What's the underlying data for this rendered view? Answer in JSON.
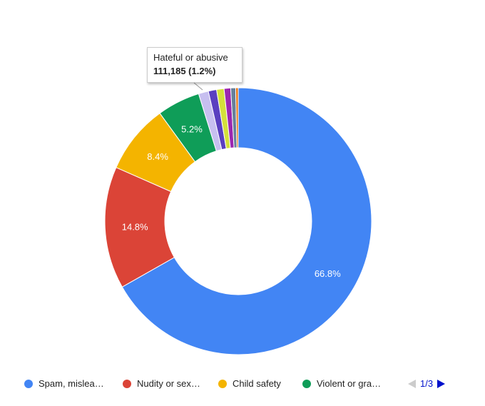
{
  "chart_data": {
    "type": "pie",
    "donut": true,
    "slices": [
      {
        "label": "Spam, misleading and scams",
        "percent": 66.8,
        "color": "#4285f4",
        "shown_label": "66.8%"
      },
      {
        "label": "Nudity or sexual content",
        "percent": 14.8,
        "color": "#db4437",
        "shown_label": "14.8%"
      },
      {
        "label": "Child safety",
        "percent": 8.4,
        "color": "#f4b400",
        "shown_label": "8.4%"
      },
      {
        "label": "Violent or graphic content",
        "percent": 5.2,
        "color": "#0f9d58",
        "shown_label": "5.2%"
      },
      {
        "label": "Hateful or abusive",
        "percent": 1.2,
        "color": "#c7bff0"
      },
      {
        "label": "",
        "percent": 1.0,
        "color": "#5a3fc0"
      },
      {
        "label": "",
        "percent": 0.9,
        "color": "#d4e03a"
      },
      {
        "label": "",
        "percent": 0.8,
        "color": "#9c27b0"
      },
      {
        "label": "",
        "percent": 0.6,
        "color": "#66809a"
      },
      {
        "label": "",
        "percent": 0.3,
        "color": "#e8710a"
      }
    ],
    "tooltip": {
      "title": "Hateful or abusive",
      "value": "111,185 (1.2%)"
    },
    "legend": {
      "placement": "bottom",
      "items": [
        {
          "label": "Spam, mislea…",
          "color": "#4285f4"
        },
        {
          "label": "Nudity or sex…",
          "color": "#db4437"
        },
        {
          "label": "Child safety",
          "color": "#f4b400"
        },
        {
          "label": "Violent or gra…",
          "color": "#0f9d58"
        }
      ],
      "page": "1/3"
    }
  }
}
